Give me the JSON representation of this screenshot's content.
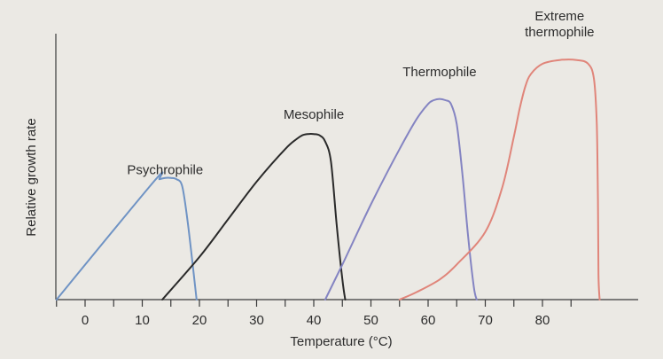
{
  "chart_data": {
    "type": "line",
    "xlabel": "Temperature (°C)",
    "ylabel": "Relative growth rate",
    "xlim": [
      -5,
      95
    ],
    "ylim": [
      0,
      1.0
    ],
    "x_ticks": [
      0,
      10,
      20,
      30,
      40,
      50,
      60,
      70,
      80
    ],
    "minor_x_ticks": [
      -5,
      5,
      15,
      25,
      35,
      45,
      55,
      65,
      75,
      85
    ],
    "grid": false,
    "series": [
      {
        "name": "Psychrophile",
        "color": "#6f93c4",
        "label_pos": [
          14,
          0.5
        ],
        "points": [
          [
            -5,
            0
          ],
          [
            12,
            0.47
          ],
          [
            13,
            0.48
          ],
          [
            14,
            0.485
          ],
          [
            15,
            0.485
          ],
          [
            16,
            0.48
          ],
          [
            17,
            0.45
          ],
          [
            18,
            0.3
          ],
          [
            19.5,
            0
          ]
        ]
      },
      {
        "name": "Mesophile",
        "color": "#2a2a2a",
        "label_pos": [
          40,
          0.72
        ],
        "points": [
          [
            13.5,
            0
          ],
          [
            20,
            0.17
          ],
          [
            25,
            0.32
          ],
          [
            30,
            0.47
          ],
          [
            35,
            0.6
          ],
          [
            37,
            0.64
          ],
          [
            38,
            0.655
          ],
          [
            39,
            0.66
          ],
          [
            40,
            0.66
          ],
          [
            41,
            0.655
          ],
          [
            42,
            0.63
          ],
          [
            43,
            0.55
          ],
          [
            44,
            0.3
          ],
          [
            45,
            0.08
          ],
          [
            45.5,
            0
          ]
        ]
      },
      {
        "name": "Thermophile",
        "color": "#8484c2",
        "label_pos": [
          62,
          0.89
        ],
        "points": [
          [
            42,
            0
          ],
          [
            45,
            0.14
          ],
          [
            50,
            0.38
          ],
          [
            55,
            0.6
          ],
          [
            58,
            0.72
          ],
          [
            60,
            0.78
          ],
          [
            61,
            0.795
          ],
          [
            62,
            0.8
          ],
          [
            63,
            0.795
          ],
          [
            64,
            0.78
          ],
          [
            65,
            0.7
          ],
          [
            66,
            0.5
          ],
          [
            67,
            0.25
          ],
          [
            68,
            0.05
          ],
          [
            68.5,
            0
          ]
        ]
      },
      {
        "name": "Extreme thermophile",
        "display_lines": [
          "Extreme",
          "thermophile"
        ],
        "color": "#e0857a",
        "label_pos": [
          83,
          1.05
        ],
        "points": [
          [
            55,
            0
          ],
          [
            58,
            0.03
          ],
          [
            62,
            0.08
          ],
          [
            65,
            0.14
          ],
          [
            70,
            0.27
          ],
          [
            73,
            0.45
          ],
          [
            75,
            0.65
          ],
          [
            76,
            0.76
          ],
          [
            77,
            0.85
          ],
          [
            78,
            0.9
          ],
          [
            80,
            0.94
          ],
          [
            83,
            0.955
          ],
          [
            86,
            0.955
          ],
          [
            88,
            0.94
          ],
          [
            89,
            0.88
          ],
          [
            89.5,
            0.7
          ],
          [
            89.7,
            0.4
          ],
          [
            89.8,
            0.1
          ],
          [
            90,
            0
          ]
        ]
      }
    ]
  }
}
